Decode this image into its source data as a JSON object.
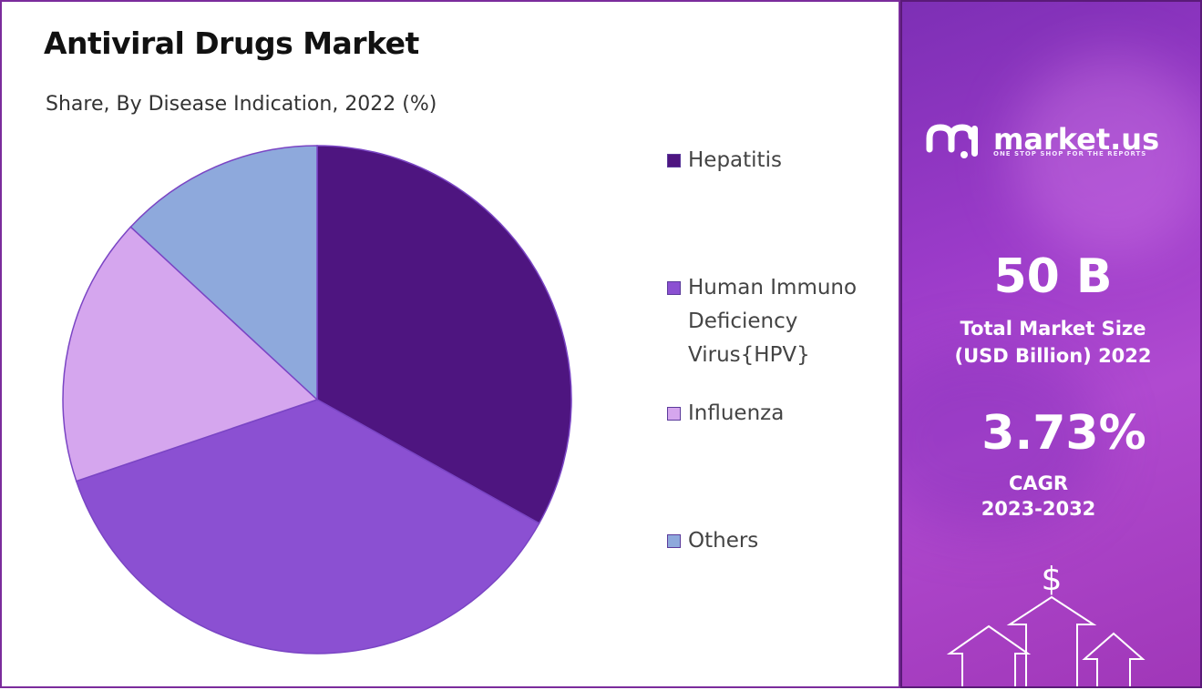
{
  "title": "Antiviral Drugs Market",
  "subtitle": "Share, By Disease Indication, 2022 (%)",
  "chart_data": {
    "type": "pie",
    "title": "Antiviral Drugs Market",
    "subtitle": "Share, By Disease Indication, 2022 (%)",
    "categories": [
      "Hepatitis",
      "Human Immuno Deficiency Virus{HPV}",
      "Influenza",
      "Others"
    ],
    "values": [
      33.1,
      36.7,
      17.1,
      13.1
    ],
    "colors": [
      "#4e1580",
      "#8b50d2",
      "#d5a6ee",
      "#8ea9dc"
    ],
    "legend": "right"
  },
  "legend": [
    {
      "label": "Hepatitis",
      "color": "#4e1580"
    },
    {
      "label": "Human Immuno Deficiency Virus{HPV}",
      "color": "#8b50d2"
    },
    {
      "label": "Influenza",
      "color": "#d5a6ee"
    },
    {
      "label": "Others",
      "color": "#8ea9dc"
    }
  ],
  "sidebar": {
    "brand": "market.us",
    "tagline": "ONE STOP SHOP FOR THE REPORTS",
    "market_size_value": "50 B",
    "market_size_label_1": "Total Market Size",
    "market_size_label_2": "(USD Billion) 2022",
    "cagr_value": "3.73%",
    "cagr_label": "CAGR",
    "cagr_period": "2023-2032",
    "dollar_symbol": "$"
  }
}
